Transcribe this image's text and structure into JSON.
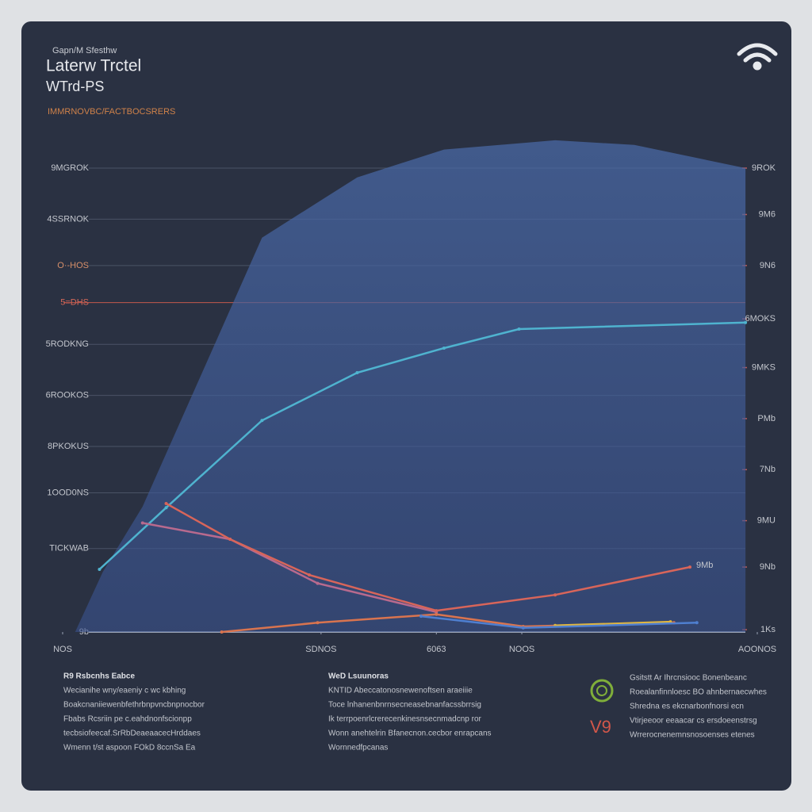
{
  "chart_data": {
    "type": "line",
    "subtitle": "Gapn/M Sfesthw",
    "title": "Laterw Trctel",
    "title_line2": "WTrd-PS",
    "caption": "IMMRNOVBC/FACTBOCSRERS",
    "xlim": [
      0,
      100
    ],
    "xticks": [
      {
        "value": 0,
        "label": "NOS"
      },
      {
        "value": 37.2,
        "label": "SDNOS"
      },
      {
        "value": 53.8,
        "label": "6063"
      },
      {
        "value": 66.1,
        "label": "NOOS"
      },
      {
        "value": 100,
        "label": "AOONOS"
      }
    ],
    "ylim": [
      0,
      11
    ],
    "yticks": [
      {
        "value": 0,
        "label": "9b"
      },
      {
        "value": 1.8,
        "label": "TICKWAB"
      },
      {
        "value": 3.0,
        "label": "1OOD0NS"
      },
      {
        "value": 4.0,
        "label": "8PKOKUS"
      },
      {
        "value": 5.1,
        "label": "6ROOKOS"
      },
      {
        "value": 6.2,
        "label": "5RODKNG"
      },
      {
        "value": 7.1,
        "label": "5=DHS"
      },
      {
        "value": 7.9,
        "label": "O·-HOS"
      },
      {
        "value": 8.9,
        "label": "4SSRNOK"
      },
      {
        "value": 10,
        "label": "9MGROK"
      }
    ],
    "y2lim": [
      0,
      11
    ],
    "y2ticks": [
      {
        "value": 0.05,
        "label": "1Ks"
      },
      {
        "value": 1.4,
        "label": "9Nb"
      },
      {
        "value": 2.4,
        "label": "9MU"
      },
      {
        "value": 3.5,
        "label": "7Nb"
      },
      {
        "value": 4.6,
        "label": "PMb"
      },
      {
        "value": 5.7,
        "label": "9MKS"
      },
      {
        "value": 6.75,
        "label": "6MOKS"
      },
      {
        "value": 7.9,
        "label": "9N6"
      },
      {
        "value": 9.0,
        "label": "9M6"
      },
      {
        "value": 10,
        "label": "9ROK"
      }
    ],
    "grid": true,
    "series": [
      {
        "color": "#4a6aa8",
        "fill": true,
        "x": [
          1.8,
          5.8,
          11.5,
          20.7,
          28.7,
          42.4,
          54.9,
          70.9,
          82.3,
          98.3,
          98.3
        ],
        "values": [
          0,
          1.3,
          2.7,
          5.8,
          8.5,
          9.8,
          10.4,
          10.6,
          10.5,
          10.0,
          6.8
        ]
      },
      {
        "color": "#4fb3cf",
        "x": [
          5.3,
          14.9,
          28.7,
          42.4,
          54.9,
          65.7,
          98.3
        ],
        "values": [
          1.35,
          2.68,
          4.56,
          5.59,
          6.12,
          6.53,
          6.67
        ]
      },
      {
        "color": "#b86a8e",
        "x": [
          11.5,
          24.1,
          36.7,
          53.8
        ],
        "values": [
          2.35,
          2.0,
          1.05,
          0.43
        ]
      },
      {
        "color": "#d8655a",
        "x": [
          14.9,
          24.1,
          35.5,
          53.8,
          70.9,
          90.3
        ],
        "values": [
          2.77,
          2.0,
          1.23,
          0.46,
          0.8,
          1.4
        ],
        "end_label": "9Mb"
      },
      {
        "color": "#d9744f",
        "x": [
          22.9,
          36.7,
          53.8,
          66.3,
          88.0
        ],
        "values": [
          0,
          0.2,
          0.38,
          0.12,
          0.2
        ]
      },
      {
        "color": "#e0b640",
        "x": [
          70.9,
          87.5
        ],
        "values": [
          0.14,
          0.22
        ]
      },
      {
        "color": "#4f7fd0",
        "x": [
          51.6,
          66.3,
          91.3
        ],
        "values": [
          0.34,
          0.09,
          0.2
        ]
      }
    ]
  },
  "footer": {
    "columns": [
      {
        "heading": "R9 Rsbcnhs Eabce",
        "lines": [
          "Wecianihe wny/eaeniy c wc kbhing",
          "Boakcnaniiewenbfethrbnpvncbnpnocbor",
          "Fbabs Rcsriin pe c.eahdnonfscionpp",
          "tecbsiofeecaf.SrRbDeaeaacecHrddaes",
          "Wmenn t/st aspoon FOkD 8ccnSa Ea"
        ]
      },
      {
        "heading": "WeD Lsuunoras",
        "lines": [
          "KNTID Abeccatonosnewenoftsen araeiiie",
          "Toce lnhanenbnrnsecneasebnanfacssbrrsig",
          "Ik terrpoenrlcrerecenkinesnsecnmadcnp ror",
          "Wonn anehtelrin Bfanecnon.cecbor enrapcans",
          "Wornnedfpcanas"
        ]
      },
      {
        "heading": "V9",
        "lines": [
          "Gsitstt Ar Ihrcnsiooc Bonenbeanc",
          "Roealanfinnloesc BO ahnbernaecwhes",
          "Shredna es ekcnarbonfnorsi ecn",
          "Vtirjeeoor eeaacar cs ersdoeenstrsg",
          "Wrrerocnenemnsnosoenses etenes"
        ]
      }
    ]
  }
}
